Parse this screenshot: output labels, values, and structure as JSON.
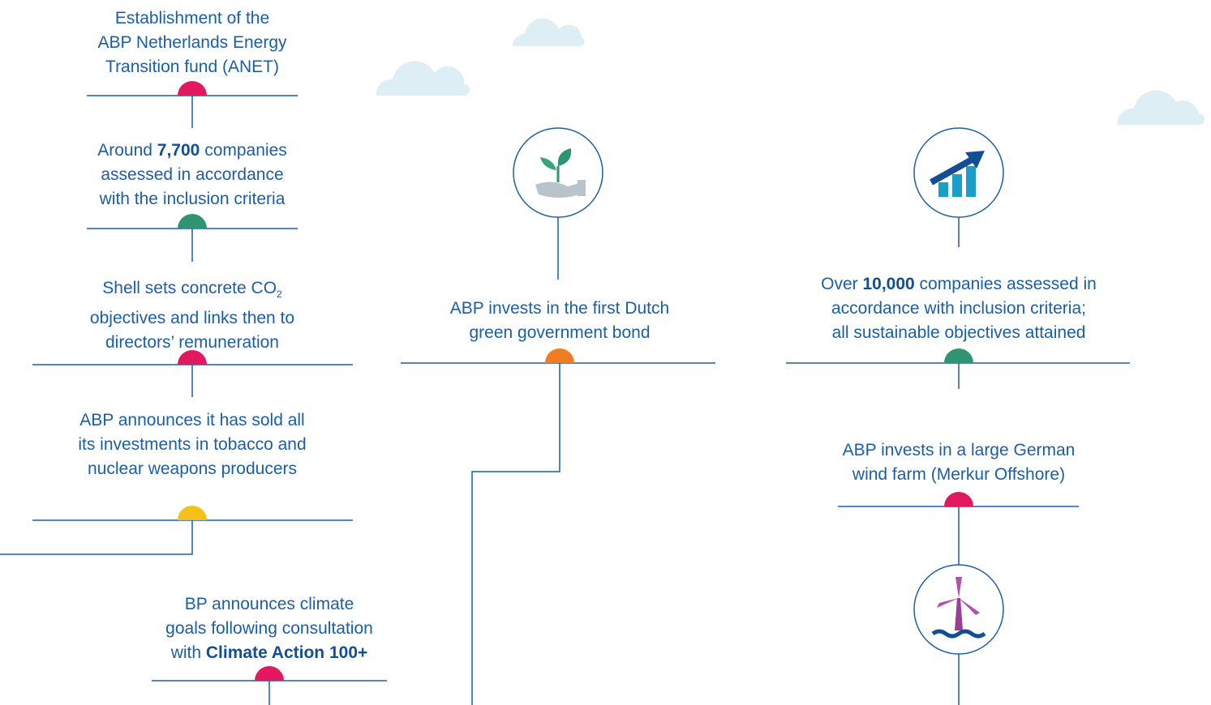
{
  "events": [
    {
      "lines": [
        [
          "Establishment of the"
        ],
        [
          "ABP Netherlands Energy"
        ],
        [
          "Transition fund (ANET)"
        ]
      ]
    },
    {
      "lines": [
        [
          "Around ",
          {
            "strong": "7,700"
          },
          " companies"
        ],
        [
          "assessed in accordance"
        ],
        [
          "with the inclusion criteria"
        ]
      ]
    },
    {
      "lines": [
        [
          "Shell sets concrete CO",
          {
            "sub": "2"
          }
        ],
        [
          "objectives and links then to"
        ],
        [
          "directors’ remuneration"
        ]
      ]
    },
    {
      "lines": [
        [
          "ABP announces it has sold all"
        ],
        [
          "its investments in tobacco and"
        ],
        [
          "nuclear weapons producers"
        ]
      ]
    },
    {
      "lines": [
        [
          "BP announces climate"
        ],
        [
          "goals following consultation"
        ],
        [
          "with ",
          {
            "strong": "Climate Action 100+"
          }
        ]
      ]
    },
    {
      "lines": [
        [
          "ABP invests in the first Dutch"
        ],
        [
          "green government bond"
        ]
      ]
    },
    {
      "lines": [
        [
          "Over ",
          {
            "strong": "10,000"
          },
          " companies assessed in"
        ],
        [
          "accordance with inclusion criteria;"
        ],
        [
          "all sustainable objectives attained"
        ]
      ]
    },
    {
      "lines": [
        [
          "ABP invests in a large German"
        ],
        [
          "wind farm (Merkur Offshore)"
        ]
      ]
    }
  ]
}
